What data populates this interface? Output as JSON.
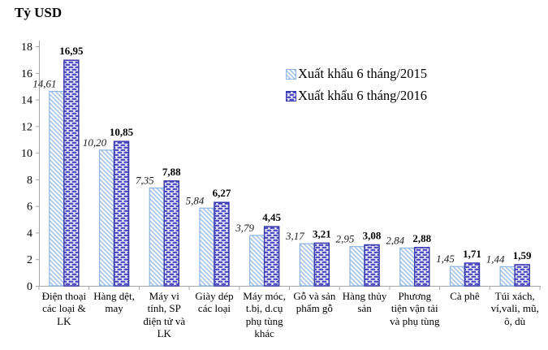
{
  "title": "Tỷ USD",
  "legend": {
    "items": [
      {
        "label": "Xuất khẩu 6 tháng/2015"
      },
      {
        "label": "Xuất khẩu 6 tháng/2016"
      }
    ]
  },
  "colors": {
    "series_2015_stripe": "#A6C4E8",
    "series_2015_border": "#8DB4E2",
    "series_2016_brick": "#4545BF",
    "series_2016_background": "#E9E9F8",
    "series_2016_border": "#3939AE",
    "axis": "#A6A6A6",
    "text": "#000000"
  },
  "chart_data": {
    "type": "bar",
    "title": "Tỷ USD",
    "ylabel": "Tỷ USD",
    "xlabel": "",
    "categories": [
      "Điện thoại các loại & LK",
      "Hàng dệt, may",
      "Máy vi tính, SP điện tử và LK",
      "Giày dép các loại",
      "Máy móc, t.bị, d.cụ phụ tùng khác",
      "Gỗ và sản phẩm gỗ",
      "Hàng thủy sản",
      "Phương tiện vận tải và phụ tùng",
      "Cà phê",
      "Túi xách, ví,vali, mũ, ô, dù"
    ],
    "series": [
      {
        "name": "Xuất khẩu 6 tháng/2015",
        "values": [
          14.61,
          10.2,
          7.35,
          5.84,
          3.79,
          3.17,
          2.95,
          2.84,
          1.45,
          1.44
        ]
      },
      {
        "name": "Xuất khẩu 6 tháng/2016",
        "values": [
          16.95,
          10.85,
          7.88,
          6.27,
          4.45,
          3.21,
          3.08,
          2.88,
          1.71,
          1.59
        ]
      }
    ],
    "ylim": [
      0,
      18
    ],
    "y_ticks": [
      0,
      2,
      4,
      6,
      8,
      10,
      12,
      14,
      16,
      18
    ],
    "ytick_step": 2,
    "grid": false,
    "legend_position": "inside-top-right",
    "value_label_format": "comma-decimal"
  }
}
